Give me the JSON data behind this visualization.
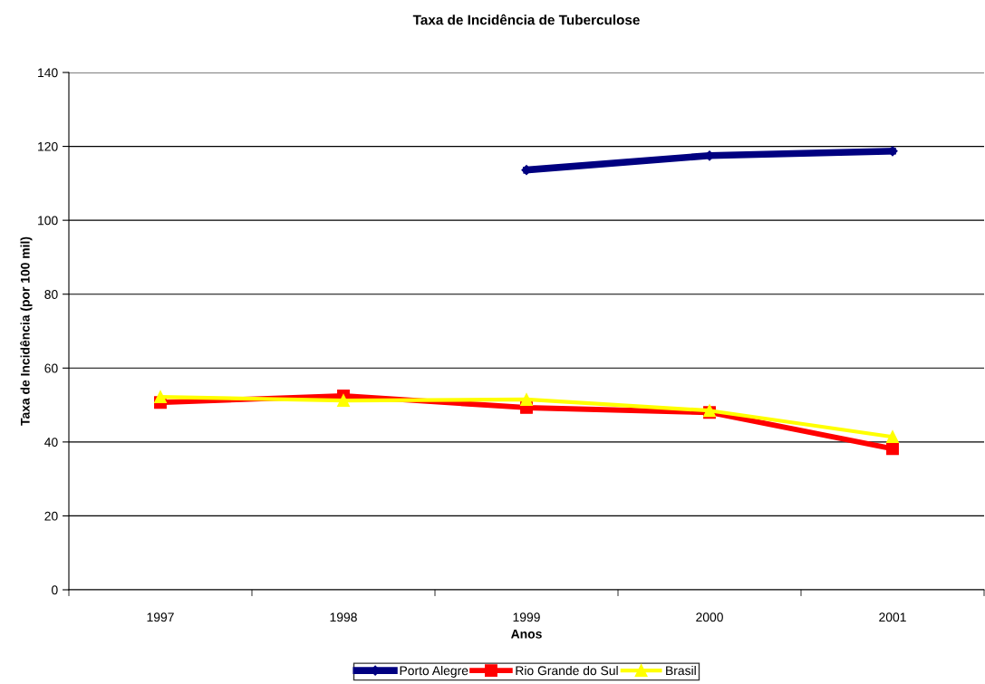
{
  "chart_data": {
    "type": "line",
    "title": "Taxa de Incidência de Tuberculose",
    "xlabel": "Anos",
    "ylabel": "Taxa de Incidência (por 100 mil)",
    "categories": [
      "1997",
      "1998",
      "1999",
      "2000",
      "2001"
    ],
    "series": [
      {
        "name": "Porto Alegre",
        "color": "#000080",
        "marker": "diamond",
        "values": [
          null,
          null,
          113.6,
          117.5,
          118.7
        ]
      },
      {
        "name": "Rio Grande do Sul",
        "color": "#ff0000",
        "marker": "square",
        "values": [
          50.7,
          52.5,
          49.3,
          48.0,
          38.2
        ]
      },
      {
        "name": "Brasil",
        "color": "#ffff00",
        "marker": "triangle",
        "values": [
          52.2,
          51.2,
          51.5,
          48.5,
          41.4
        ]
      }
    ],
    "ylim": [
      0,
      140
    ],
    "yticks": [
      0,
      20,
      40,
      60,
      80,
      100,
      120,
      140
    ],
    "grid": "y",
    "legend": "bottom",
    "line_style": "solid"
  }
}
